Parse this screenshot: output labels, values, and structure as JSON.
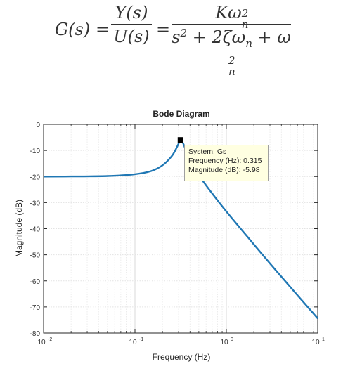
{
  "formula": {
    "lhs": "G(s)",
    "eq": "=",
    "num1": "Y(s)",
    "den1": "U(s)",
    "num2_base": "Kω",
    "num2_sup": "2",
    "num2_sub": "n",
    "den2_a": "s",
    "den2_a_sup": "2",
    "den2_b": " + 2ζω",
    "den2_b_sub": "n",
    "den2_c": " + ω",
    "den2_c_sup": "2",
    "den2_c_sub": "n"
  },
  "datatip": {
    "system": "System: Gs",
    "frequency": "Frequency (Hz): 0.315",
    "magnitude": "Magnitude (dB): -5.98"
  },
  "chart_data": {
    "type": "line",
    "title": "Bode Diagram",
    "xlabel": "Frequency  (Hz)",
    "ylabel": "Magnitude (dB)",
    "xscale": "log",
    "xlim": [
      0.01,
      10
    ],
    "ylim": [
      -80,
      0
    ],
    "grid": true,
    "xticks": [
      0.01,
      0.1,
      1,
      10
    ],
    "xtick_labels": [
      {
        "base": "10",
        "exp": "-2"
      },
      {
        "base": "10",
        "exp": "-1"
      },
      {
        "base": "10",
        "exp": "0"
      },
      {
        "base": "10",
        "exp": "1"
      }
    ],
    "yticks": [
      0,
      -10,
      -20,
      -30,
      -40,
      -50,
      -60,
      -70,
      -80
    ],
    "ytick_labels": [
      "0",
      "-10",
      "-20",
      "-30",
      "-40",
      "-50",
      "-60",
      "-70",
      "-80"
    ],
    "series": [
      {
        "color": "#1f77b4",
        "x": [
          0.01,
          0.02,
          0.05,
          0.1,
          0.15,
          0.2,
          0.25,
          0.28,
          0.3,
          0.315,
          0.34,
          0.37,
          0.4,
          0.5,
          0.7,
          1,
          2,
          3,
          5,
          7,
          10
        ],
        "y": [
          -20.0,
          -19.96,
          -19.8,
          -19.1,
          -17.9,
          -15.7,
          -12.4,
          -9.6,
          -7.4,
          -5.98,
          -7.6,
          -11.2,
          -14.0,
          -19.5,
          -26.5,
          -33.4,
          -46.0,
          -53.3,
          -62.3,
          -68.2,
          -74.4
        ]
      }
    ],
    "marker": {
      "x": 0.315,
      "y": -5.98
    }
  }
}
